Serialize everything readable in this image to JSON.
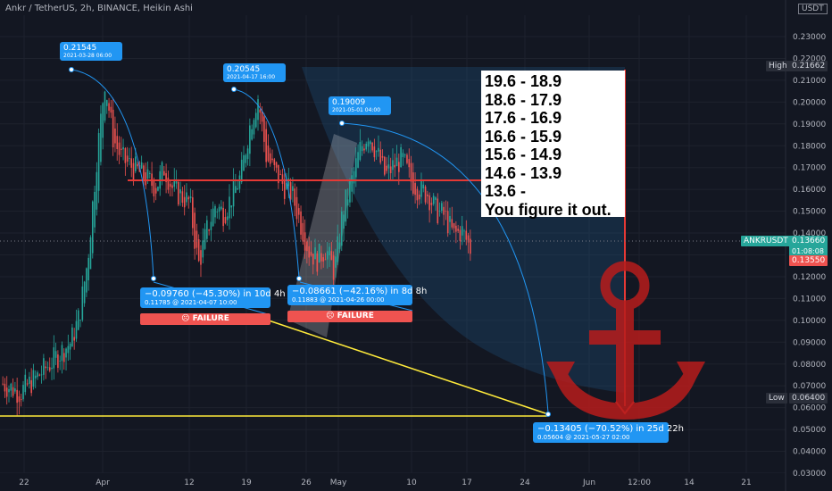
{
  "header": {
    "title": "Ankr / TetherUS, 2h, BINANCE, Heikin Ashi",
    "unit": "USDT"
  },
  "colors": {
    "background": "#131722",
    "bull": "#26a69a",
    "bear": "#ef5350",
    "accent": "#2196f3",
    "resistance": "#e53935",
    "trend": "#ffeb3b",
    "anchor": "#b71c1c"
  },
  "chart_data": {
    "type": "candlestick",
    "y_axis": {
      "ticks": [
        "0.23000",
        "0.22000",
        "0.21000",
        "0.20000",
        "0.19000",
        "0.18000",
        "0.17000",
        "0.16000",
        "0.15000",
        "0.14000",
        "0.13000",
        "0.12000",
        "0.11000",
        "0.10000",
        "0.09000",
        "0.08000",
        "0.07000",
        "0.06000",
        "0.05000",
        "0.04000",
        "0.03000"
      ],
      "range": [
        0.027,
        0.234
      ]
    },
    "x_axis": {
      "ticks": [
        "22",
        "Apr",
        "12",
        "19",
        "26",
        "May",
        "10",
        "17",
        "24",
        "Jun",
        "12:00",
        "14",
        "21"
      ]
    },
    "price_path": [
      [
        0,
        0.071
      ],
      [
        2,
        0.067
      ],
      [
        4,
        0.074
      ],
      [
        6,
        0.082
      ],
      [
        8,
        0.09
      ],
      [
        9,
        0.102
      ],
      [
        10,
        0.128
      ],
      [
        11,
        0.172
      ],
      [
        12,
        0.21
      ],
      [
        13,
        0.183
      ],
      [
        14,
        0.174
      ],
      [
        16,
        0.168
      ],
      [
        18,
        0.161
      ],
      [
        19,
        0.17
      ],
      [
        20,
        0.16
      ],
      [
        22,
        0.154
      ],
      [
        23,
        0.125
      ],
      [
        24,
        0.141
      ],
      [
        25,
        0.153
      ],
      [
        26,
        0.149
      ],
      [
        28,
        0.166
      ],
      [
        29,
        0.188
      ],
      [
        30,
        0.203
      ],
      [
        31,
        0.175
      ],
      [
        32,
        0.168
      ],
      [
        33,
        0.162
      ],
      [
        34,
        0.158
      ],
      [
        35,
        0.145
      ],
      [
        36,
        0.132
      ],
      [
        37,
        0.128
      ],
      [
        38,
        0.133
      ],
      [
        39,
        0.122
      ],
      [
        40,
        0.15
      ],
      [
        41,
        0.163
      ],
      [
        42,
        0.178
      ],
      [
        43,
        0.186
      ],
      [
        44,
        0.177
      ],
      [
        45,
        0.166
      ],
      [
        46,
        0.171
      ],
      [
        47,
        0.174
      ],
      [
        48,
        0.164
      ],
      [
        49,
        0.16
      ],
      [
        50,
        0.158
      ],
      [
        51,
        0.15
      ],
      [
        52,
        0.148
      ],
      [
        53,
        0.139
      ],
      [
        54,
        0.141
      ],
      [
        55,
        0.133
      ]
    ],
    "high_label": "High",
    "high_value": "0.21662",
    "low_label": "Low",
    "low_value": "0.06400",
    "symbol_label": "ANKRUSDT",
    "last_price": "0.13660",
    "countdown": "01:08:08",
    "price_line_value": "0.13550",
    "resistance_level": 0.1635,
    "trend_level": 0.0562,
    "peak_callouts": [
      {
        "value": "0.21545",
        "date": "2021-03-28 06:00"
      },
      {
        "value": "0.20545",
        "date": "2021-04-17 16:00"
      },
      {
        "value": "0.19009",
        "date": "2021-05-01 04:00"
      }
    ],
    "measure_callouts": [
      {
        "change": "−0.09760 (−45.30%) in 10d 4h",
        "detail": "0.11785 @ 2021-04-07  10:00",
        "tag": "☹ FAILURE"
      },
      {
        "change": "−0.08661 (−42.16%) in 8d 8h",
        "detail": "0.11883 @ 2021-04-26  00:00",
        "tag": "☹ FAILURE"
      },
      {
        "change": "−0.13405 (−70.52%) in 25d 22h",
        "detail": "0.05604 @ 2021-05-27  02:00",
        "tag": ""
      }
    ],
    "annotation_lines": [
      "19.6 - 18.9",
      "18.6 - 17.9",
      "17.6 - 16.9",
      "16.6 - 15.9",
      "15.6 - 14.9",
      "14.6 - 13.9",
      "13.6 -",
      "You figure it out."
    ]
  }
}
